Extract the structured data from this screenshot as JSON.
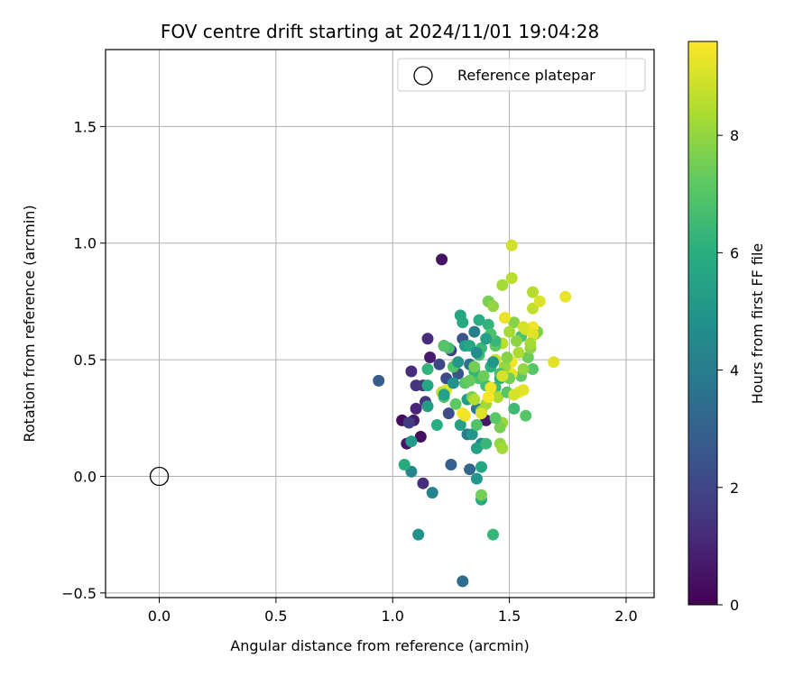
{
  "chart_data": {
    "type": "scatter",
    "title": "FOV centre drift starting at 2024/11/01 19:04:28",
    "xlabel": "Angular distance from reference (arcmin)",
    "ylabel": "Rotation from reference (arcmin)",
    "xlim": [
      -0.23,
      2.12
    ],
    "ylim": [
      -0.52,
      1.83
    ],
    "xticks": [
      0.0,
      0.5,
      1.0,
      1.5,
      2.0
    ],
    "xtick_labels": [
      "0.0",
      "0.5",
      "1.0",
      "1.5",
      "2.0"
    ],
    "yticks": [
      -0.5,
      0.0,
      0.5,
      1.0,
      1.5
    ],
    "ytick_labels": [
      "−0.5",
      "0.0",
      "0.5",
      "1.0",
      "1.5"
    ],
    "grid": true,
    "legend": {
      "position": "top-right",
      "label": "Reference platepar"
    },
    "reference_point": {
      "x": 0.0,
      "y": 0.0
    },
    "colorbar": {
      "label": "Hours from first FF file",
      "colormap": "viridis",
      "range": [
        0,
        9.6
      ],
      "ticks": [
        0,
        2,
        4,
        6,
        8
      ],
      "tick_labels": [
        "0",
        "2",
        "4",
        "6",
        "8"
      ]
    },
    "series": [
      {
        "points": [
          [
            1.21,
            0.93,
            0.5
          ],
          [
            1.04,
            0.24,
            0.3
          ],
          [
            1.06,
            0.14,
            0.6
          ],
          [
            1.09,
            0.24,
            0.8
          ],
          [
            1.12,
            0.17,
            0.4
          ],
          [
            1.1,
            0.29,
            1.0
          ],
          [
            1.08,
            0.45,
            1.2
          ],
          [
            1.1,
            0.39,
            1.4
          ],
          [
            1.13,
            0.39,
            1.6
          ],
          [
            1.14,
            0.32,
            1.5
          ],
          [
            1.15,
            0.59,
            1.2
          ],
          [
            1.16,
            0.51,
            0.7
          ],
          [
            1.22,
            0.56,
            1.0
          ],
          [
            1.25,
            0.54,
            1.8
          ],
          [
            1.13,
            -0.03,
            1.3
          ],
          [
            1.07,
            0.23,
            1.7
          ],
          [
            1.4,
            0.24,
            0.6
          ],
          [
            1.2,
            0.48,
            2.0
          ],
          [
            1.23,
            0.42,
            2.2
          ],
          [
            1.24,
            0.27,
            2.3
          ],
          [
            1.28,
            0.44,
            2.5
          ],
          [
            1.3,
            0.59,
            2.4
          ],
          [
            0.94,
            0.41,
            2.8
          ],
          [
            1.25,
            0.05,
            3.0
          ],
          [
            1.33,
            0.03,
            3.2
          ],
          [
            1.3,
            -0.45,
            3.4
          ],
          [
            1.17,
            -0.07,
            4.2
          ],
          [
            1.11,
            -0.25,
            4.8
          ],
          [
            1.08,
            0.02,
            4.4
          ],
          [
            1.32,
            0.18,
            4.0
          ],
          [
            1.35,
            0.62,
            4.1
          ],
          [
            1.33,
            0.48,
            3.6
          ],
          [
            1.36,
            0.29,
            3.8
          ],
          [
            1.38,
            0.14,
            4.5
          ],
          [
            1.36,
            -0.01,
            5.0
          ],
          [
            1.38,
            -0.1,
            5.8
          ],
          [
            1.43,
            -0.25,
            6.3
          ],
          [
            1.38,
            0.04,
            5.6
          ],
          [
            1.36,
            0.12,
            5.5
          ],
          [
            1.34,
            0.18,
            5.0
          ],
          [
            1.32,
            0.33,
            5.2
          ],
          [
            1.29,
            0.22,
            5.4
          ],
          [
            1.31,
            0.56,
            5.3
          ],
          [
            1.29,
            0.69,
            5.6
          ],
          [
            1.3,
            0.66,
            5.8
          ],
          [
            1.33,
            0.56,
            5.7
          ],
          [
            1.37,
            0.67,
            6.0
          ],
          [
            1.41,
            0.65,
            6.2
          ],
          [
            1.38,
            0.55,
            6.4
          ],
          [
            1.42,
            0.47,
            6.1
          ],
          [
            1.46,
            0.42,
            5.9
          ],
          [
            1.44,
            0.38,
            6.5
          ],
          [
            1.4,
            0.39,
            6.6
          ],
          [
            1.37,
            0.42,
            6.8
          ],
          [
            1.35,
            0.45,
            6.3
          ],
          [
            1.22,
            0.34,
            6.9
          ],
          [
            1.19,
            0.22,
            6.0
          ],
          [
            1.15,
            0.39,
            5.7
          ],
          [
            1.15,
            0.3,
            5.3
          ],
          [
            1.05,
            0.05,
            5.9
          ],
          [
            1.08,
            0.15,
            5.2
          ],
          [
            1.15,
            0.46,
            6.2
          ],
          [
            1.24,
            0.55,
            6.7
          ],
          [
            1.22,
            0.56,
            7.0
          ],
          [
            1.26,
            0.47,
            6.9
          ],
          [
            1.31,
            0.4,
            7.1
          ],
          [
            1.33,
            0.41,
            7.3
          ],
          [
            1.35,
            0.47,
            7.5
          ],
          [
            1.34,
            0.34,
            7.6
          ],
          [
            1.3,
            0.27,
            7.8
          ],
          [
            1.38,
            0.28,
            7.9
          ],
          [
            1.4,
            0.31,
            8.2
          ],
          [
            1.45,
            0.34,
            8.4
          ],
          [
            1.47,
            0.23,
            8.1
          ],
          [
            1.46,
            0.14,
            8.0
          ],
          [
            1.46,
            0.21,
            7.6
          ],
          [
            1.49,
            0.36,
            7.0
          ],
          [
            1.52,
            0.29,
            6.5
          ],
          [
            1.55,
            0.43,
            7.2
          ],
          [
            1.57,
            0.26,
            7.0
          ],
          [
            1.6,
            0.46,
            7.0
          ],
          [
            1.58,
            0.51,
            7.4
          ],
          [
            1.59,
            0.55,
            7.9
          ],
          [
            1.61,
            0.61,
            8.1
          ],
          [
            1.62,
            0.62,
            7.7
          ],
          [
            1.55,
            0.6,
            6.8
          ],
          [
            1.52,
            0.66,
            7.8
          ],
          [
            1.5,
            0.62,
            8.3
          ],
          [
            1.47,
            0.57,
            8.6
          ],
          [
            1.44,
            0.56,
            7.2
          ],
          [
            1.44,
            0.58,
            6.4
          ],
          [
            1.42,
            0.61,
            6.8
          ],
          [
            1.41,
            0.75,
            7.3
          ],
          [
            1.41,
            0.75,
            7.6
          ],
          [
            1.43,
            0.73,
            8.0
          ],
          [
            1.47,
            0.82,
            8.3
          ],
          [
            1.51,
            0.85,
            8.6
          ],
          [
            1.51,
            0.99,
            8.9
          ],
          [
            1.48,
            0.68,
            9.3
          ],
          [
            1.57,
            0.63,
            8.8
          ],
          [
            1.6,
            0.79,
            8.5
          ],
          [
            1.6,
            0.72,
            8.7
          ],
          [
            1.63,
            0.75,
            9.1
          ],
          [
            1.74,
            0.77,
            9.3
          ],
          [
            1.69,
            0.49,
            9.2
          ],
          [
            1.6,
            0.64,
            9.4
          ],
          [
            1.6,
            0.61,
            9.2
          ],
          [
            1.56,
            0.64,
            9.0
          ],
          [
            1.59,
            0.57,
            8.3
          ],
          [
            1.54,
            0.36,
            9.5
          ],
          [
            1.56,
            0.37,
            9.2
          ],
          [
            1.52,
            0.35,
            9.0
          ],
          [
            1.51,
            0.44,
            9.3
          ],
          [
            1.51,
            0.49,
            9.4
          ],
          [
            1.42,
            0.38,
            9.4
          ],
          [
            1.41,
            0.34,
            9.5
          ],
          [
            1.38,
            0.27,
            9.1
          ],
          [
            1.3,
            0.27,
            9.6
          ],
          [
            1.31,
            0.26,
            9.4
          ],
          [
            1.23,
            0.37,
            9.2
          ],
          [
            1.21,
            0.36,
            8.7
          ],
          [
            1.44,
            0.5,
            8.8
          ],
          [
            1.48,
            0.47,
            8.1
          ],
          [
            1.49,
            0.51,
            7.8
          ],
          [
            1.54,
            0.53,
            8.4
          ],
          [
            1.53,
            0.58,
            7.9
          ],
          [
            1.39,
            0.43,
            7.4
          ],
          [
            1.37,
            0.52,
            6.6
          ],
          [
            1.38,
            -0.08,
            7.5
          ],
          [
            1.4,
            0.14,
            6.4
          ],
          [
            1.44,
            0.25,
            7.1
          ],
          [
            1.47,
            0.12,
            8.2
          ],
          [
            1.36,
            0.22,
            6.9
          ],
          [
            1.27,
            0.31,
            7.2
          ],
          [
            1.22,
            0.35,
            5.5
          ],
          [
            1.26,
            0.4,
            4.9
          ],
          [
            1.28,
            0.49,
            5.1
          ],
          [
            1.36,
            0.53,
            4.6
          ],
          [
            1.4,
            0.59,
            5.4
          ],
          [
            1.43,
            0.49,
            5.0
          ],
          [
            1.46,
            0.44,
            6.7
          ],
          [
            1.5,
            0.42,
            7.5
          ],
          [
            1.56,
            0.46,
            8.0
          ],
          [
            1.47,
            0.43,
            9.0
          ],
          [
            1.35,
            0.33,
            8.5
          ]
        ]
      }
    ]
  }
}
